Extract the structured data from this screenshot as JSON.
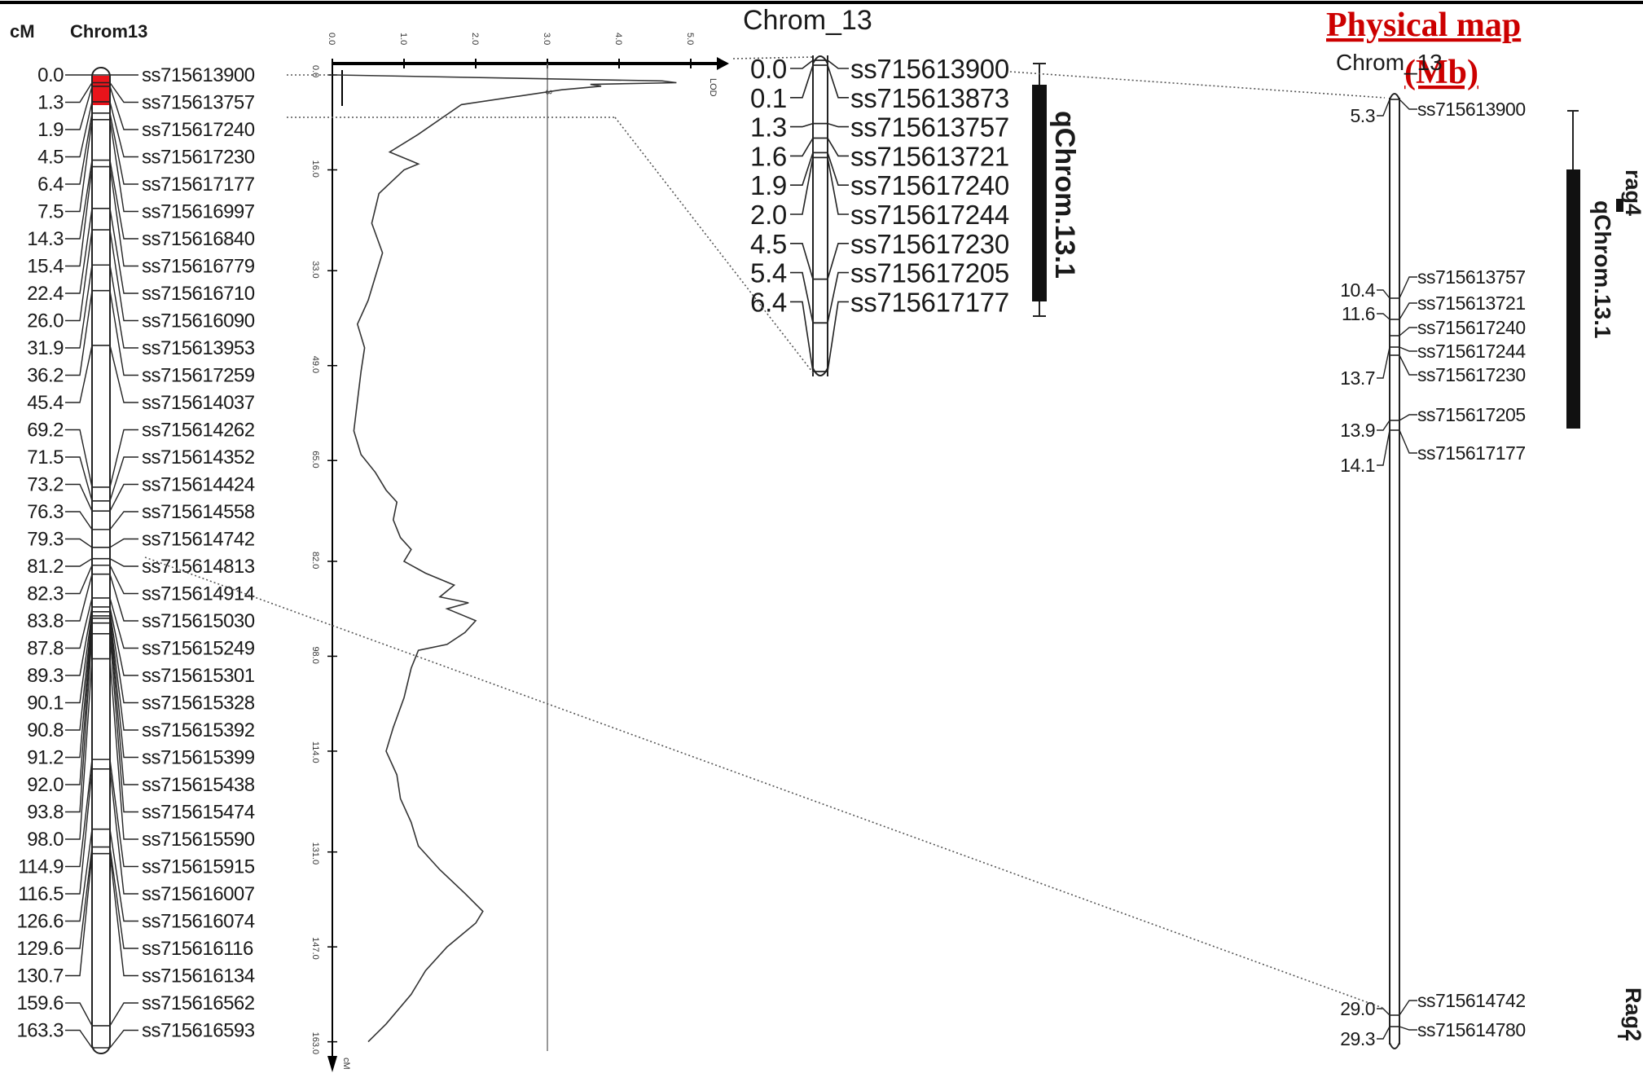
{
  "left_map": {
    "unit_label": "cM",
    "chrom_label": "Chrom13",
    "markers": [
      {
        "pos": "0.0",
        "name": "ss715613900"
      },
      {
        "pos": "1.3",
        "name": "ss715613757"
      },
      {
        "pos": "1.9",
        "name": "ss715617240"
      },
      {
        "pos": "4.5",
        "name": "ss715617230"
      },
      {
        "pos": "6.4",
        "name": "ss715617177"
      },
      {
        "pos": "7.5",
        "name": "ss715616997"
      },
      {
        "pos": "14.3",
        "name": "ss715616840"
      },
      {
        "pos": "15.4",
        "name": "ss715616779"
      },
      {
        "pos": "22.4",
        "name": "ss715616710"
      },
      {
        "pos": "26.0",
        "name": "ss715616090"
      },
      {
        "pos": "31.9",
        "name": "ss715613953"
      },
      {
        "pos": "36.2",
        "name": "ss715617259"
      },
      {
        "pos": "45.4",
        "name": "ss715614037"
      },
      {
        "pos": "69.2",
        "name": "ss715614262"
      },
      {
        "pos": "71.5",
        "name": "ss715614352"
      },
      {
        "pos": "73.2",
        "name": "ss715614424"
      },
      {
        "pos": "76.3",
        "name": "ss715614558"
      },
      {
        "pos": "79.3",
        "name": "ss715614742"
      },
      {
        "pos": "81.2",
        "name": "ss715614813"
      },
      {
        "pos": "82.3",
        "name": "ss715614914"
      },
      {
        "pos": "83.8",
        "name": "ss715615030"
      },
      {
        "pos": "87.8",
        "name": "ss715615249"
      },
      {
        "pos": "89.3",
        "name": "ss715615301"
      },
      {
        "pos": "90.1",
        "name": "ss715615328"
      },
      {
        "pos": "90.8",
        "name": "ss715615392"
      },
      {
        "pos": "91.2",
        "name": "ss715615399"
      },
      {
        "pos": "92.0",
        "name": "ss715615438"
      },
      {
        "pos": "93.8",
        "name": "ss715615474"
      },
      {
        "pos": "98.0",
        "name": "ss715615590"
      },
      {
        "pos": "114.9",
        "name": "ss715615915"
      },
      {
        "pos": "116.5",
        "name": "ss715616007"
      },
      {
        "pos": "126.6",
        "name": "ss715616074"
      },
      {
        "pos": "129.6",
        "name": "ss715616116"
      },
      {
        "pos": "130.7",
        "name": "ss715616134"
      },
      {
        "pos": "159.6",
        "name": "ss715616562"
      },
      {
        "pos": "163.3",
        "name": "ss715616593"
      }
    ],
    "highlight_color": "#e8141b"
  },
  "lod_plot": {
    "lod_axis_ticks": [
      "0.0",
      "1.0",
      "2.0",
      "3.0",
      "4.0",
      "5.0"
    ],
    "lod_axis_label": "LOD",
    "threshold_label": "3",
    "threshold": 3.0,
    "cm_axis_ticks": [
      "0.0",
      "16.0",
      "33.0",
      "49.0",
      "65.0",
      "82.0",
      "98.0",
      "114.0",
      "131.0",
      "147.0",
      "163.0"
    ],
    "cm_axis_label": "cM",
    "profile": [
      [
        0.0,
        0.05
      ],
      [
        1.0,
        4.6
      ],
      [
        1.3,
        4.8
      ],
      [
        1.6,
        3.6
      ],
      [
        1.9,
        3.75
      ],
      [
        2.5,
        3.2
      ],
      [
        5,
        1.8
      ],
      [
        10,
        1.2
      ],
      [
        13,
        0.8
      ],
      [
        15,
        1.2
      ],
      [
        16,
        1.0
      ],
      [
        20,
        0.65
      ],
      [
        25,
        0.55
      ],
      [
        30,
        0.7
      ],
      [
        34,
        0.6
      ],
      [
        38,
        0.5
      ],
      [
        42,
        0.35
      ],
      [
        46,
        0.45
      ],
      [
        50,
        0.4
      ],
      [
        55,
        0.35
      ],
      [
        60,
        0.3
      ],
      [
        64,
        0.4
      ],
      [
        67,
        0.6
      ],
      [
        70,
        0.75
      ],
      [
        72,
        0.9
      ],
      [
        75,
        0.85
      ],
      [
        78,
        0.95
      ],
      [
        80,
        1.1
      ],
      [
        82,
        1.0
      ],
      [
        84,
        1.3
      ],
      [
        86,
        1.7
      ],
      [
        88,
        1.5
      ],
      [
        89,
        1.9
      ],
      [
        90,
        1.6
      ],
      [
        92,
        2.0
      ],
      [
        94,
        1.85
      ],
      [
        96,
        1.6
      ],
      [
        97,
        1.2
      ],
      [
        100,
        1.1
      ],
      [
        105,
        1.0
      ],
      [
        110,
        0.85
      ],
      [
        114,
        0.75
      ],
      [
        118,
        0.9
      ],
      [
        122,
        0.95
      ],
      [
        126,
        1.1
      ],
      [
        130,
        1.2
      ],
      [
        134,
        1.5
      ],
      [
        138,
        1.85
      ],
      [
        141,
        2.1
      ],
      [
        143,
        2.0
      ],
      [
        147,
        1.6
      ],
      [
        151,
        1.3
      ],
      [
        155,
        1.1
      ],
      [
        160,
        0.75
      ],
      [
        163,
        0.5
      ]
    ]
  },
  "middle_map": {
    "title": "Chrom_13",
    "markers": [
      {
        "pos": "0.0",
        "name": "ss715613900"
      },
      {
        "pos": "0.1",
        "name": "ss715613873"
      },
      {
        "pos": "1.3",
        "name": "ss715613757"
      },
      {
        "pos": "1.6",
        "name": "ss715613721"
      },
      {
        "pos": "1.9",
        "name": "ss715617240"
      },
      {
        "pos": "2.0",
        "name": "ss715617244"
      },
      {
        "pos": "4.5",
        "name": "ss715617230"
      },
      {
        "pos": "5.4",
        "name": "ss715617205"
      },
      {
        "pos": "6.4",
        "name": "ss715617177"
      }
    ],
    "qtl_label": "qChrom.13.1"
  },
  "physical_map": {
    "heading_line1": "Physical map",
    "heading_line2": "(Mb)",
    "title": "Chrom_13",
    "positions": [
      "5.3",
      "10.4",
      "11.6",
      "13.7",
      "13.9",
      "14.1",
      "29.0",
      "29.3"
    ],
    "markers": [
      "ss715613900",
      "ss715613757",
      "ss715613721",
      "ss715617240",
      "ss715617244",
      "ss715617230",
      "ss715617205",
      "ss715617177",
      "ss715614742",
      "ss715614780"
    ],
    "qtl_label": "qChrom.13.1",
    "gene_labels": [
      "rag4",
      "Rag2"
    ],
    "heading_color": "#cc0000"
  }
}
